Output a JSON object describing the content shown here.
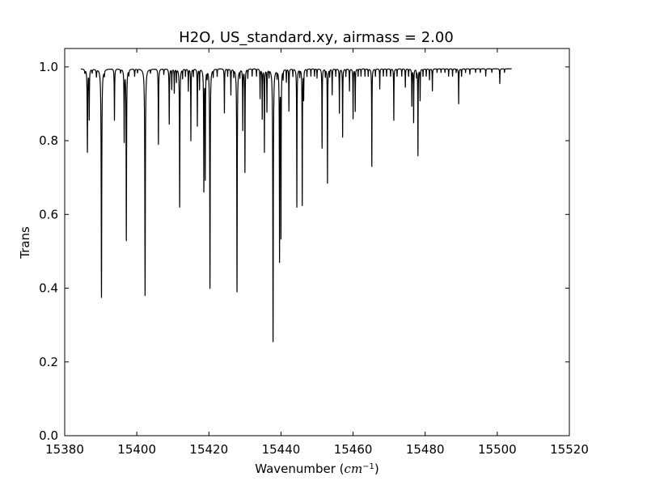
{
  "chart_data": {
    "type": "line",
    "title": "H2O, US_standard.xy, airmass = 2.00",
    "xlabel_prefix": "Wavenumber (",
    "xlabel_math": "cm",
    "xlabel_exp": "−1",
    "xlabel_suffix": ")",
    "ylabel": "Trans",
    "xlim": [
      15380,
      15520
    ],
    "ylim": [
      0.0,
      1.05
    ],
    "xticks": [
      15380,
      15400,
      15420,
      15440,
      15460,
      15480,
      15500,
      15520
    ],
    "yticks": [
      0.0,
      0.2,
      0.4,
      0.6,
      0.8,
      1.0
    ],
    "xtick_labels": [
      "15380",
      "15400",
      "15420",
      "15440",
      "15460",
      "15480",
      "15500",
      "15520"
    ],
    "ytick_labels": [
      "0.0",
      "0.2",
      "0.4",
      "0.6",
      "0.8",
      "1.0"
    ],
    "grid": false,
    "line_color": "#000000",
    "series": [
      {
        "x_range": [
          15384.5,
          15504.0
        ],
        "baseline": 0.995,
        "lines": [
          [
            15385.6,
            0.985,
            0.1
          ],
          [
            15386.3,
            0.77,
            0.07
          ],
          [
            15386.8,
            0.86,
            0.06
          ],
          [
            15387.6,
            0.985,
            0.08
          ],
          [
            15388.8,
            0.975,
            0.08
          ],
          [
            15390.2,
            0.375,
            0.07
          ],
          [
            15391.0,
            0.98,
            0.08
          ],
          [
            15393.8,
            0.855,
            0.06
          ],
          [
            15395.5,
            0.985,
            0.07
          ],
          [
            15396.5,
            0.8,
            0.06
          ],
          [
            15397.1,
            0.53,
            0.06
          ],
          [
            15397.8,
            0.98,
            0.07
          ],
          [
            15399.4,
            0.975,
            0.07
          ],
          [
            15400.2,
            0.985,
            0.06
          ],
          [
            15402.3,
            0.38,
            0.07
          ],
          [
            15403.8,
            0.985,
            0.06
          ],
          [
            15406.0,
            0.79,
            0.06
          ],
          [
            15407.5,
            0.98,
            0.06
          ],
          [
            15409.0,
            0.845,
            0.06
          ],
          [
            15409.7,
            0.94,
            0.05
          ],
          [
            15410.4,
            0.93,
            0.05
          ],
          [
            15411.0,
            0.96,
            0.05
          ],
          [
            15411.9,
            0.62,
            0.06
          ],
          [
            15412.7,
            0.97,
            0.05
          ],
          [
            15413.5,
            0.975,
            0.05
          ],
          [
            15414.3,
            0.935,
            0.05
          ],
          [
            15415.0,
            0.8,
            0.05
          ],
          [
            15415.7,
            0.975,
            0.05
          ],
          [
            15416.8,
            0.84,
            0.05
          ],
          [
            15417.4,
            0.94,
            0.05
          ],
          [
            15418.6,
            0.665,
            0.06
          ],
          [
            15419.0,
            0.7,
            0.05
          ],
          [
            15419.5,
            0.975,
            0.05
          ],
          [
            15420.3,
            0.4,
            0.06
          ],
          [
            15421.2,
            0.975,
            0.05
          ],
          [
            15422.3,
            0.975,
            0.05
          ],
          [
            15424.3,
            0.875,
            0.05
          ],
          [
            15425.2,
            0.975,
            0.05
          ],
          [
            15426.1,
            0.925,
            0.05
          ],
          [
            15426.9,
            0.975,
            0.05
          ],
          [
            15427.8,
            0.39,
            0.06
          ],
          [
            15428.6,
            0.975,
            0.05
          ],
          [
            15429.4,
            0.83,
            0.05
          ],
          [
            15430.0,
            0.715,
            0.05
          ],
          [
            15430.8,
            0.97,
            0.05
          ],
          [
            15432.0,
            0.975,
            0.05
          ],
          [
            15433.2,
            0.975,
            0.05
          ],
          [
            15434.2,
            0.915,
            0.05
          ],
          [
            15434.8,
            0.86,
            0.05
          ],
          [
            15435.4,
            0.77,
            0.05
          ],
          [
            15436.1,
            0.88,
            0.05
          ],
          [
            15436.7,
            0.975,
            0.05
          ],
          [
            15437.8,
            0.255,
            0.06
          ],
          [
            15438.9,
            0.975,
            0.05
          ],
          [
            15439.6,
            0.475,
            0.05
          ],
          [
            15440.0,
            0.54,
            0.05
          ],
          [
            15440.6,
            0.97,
            0.05
          ],
          [
            15441.5,
            0.96,
            0.05
          ],
          [
            15442.2,
            0.88,
            0.05
          ],
          [
            15443.3,
            0.975,
            0.05
          ],
          [
            15444.4,
            0.62,
            0.05
          ],
          [
            15445.2,
            0.975,
            0.05
          ],
          [
            15445.9,
            0.625,
            0.05
          ],
          [
            15446.3,
            0.915,
            0.05
          ],
          [
            15447.2,
            0.975,
            0.05
          ],
          [
            15448.3,
            0.975,
            0.05
          ],
          [
            15449.3,
            0.975,
            0.05
          ],
          [
            15450.0,
            0.97,
            0.05
          ],
          [
            15451.4,
            0.78,
            0.05
          ],
          [
            15452.3,
            0.975,
            0.05
          ],
          [
            15452.9,
            0.685,
            0.05
          ],
          [
            15453.5,
            0.975,
            0.05
          ],
          [
            15454.2,
            0.925,
            0.05
          ],
          [
            15455.2,
            0.975,
            0.05
          ],
          [
            15456.2,
            0.875,
            0.05
          ],
          [
            15457.1,
            0.81,
            0.05
          ],
          [
            15458.0,
            0.975,
            0.05
          ],
          [
            15459.0,
            0.935,
            0.05
          ],
          [
            15460.0,
            0.86,
            0.05
          ],
          [
            15460.6,
            0.88,
            0.05
          ],
          [
            15461.4,
            0.975,
            0.05
          ],
          [
            15462.2,
            0.975,
            0.05
          ],
          [
            15463.3,
            0.975,
            0.05
          ],
          [
            15464.2,
            0.975,
            0.05
          ],
          [
            15465.2,
            0.73,
            0.05
          ],
          [
            15466.2,
            0.975,
            0.05
          ],
          [
            15467.4,
            0.94,
            0.05
          ],
          [
            15468.4,
            0.975,
            0.05
          ],
          [
            15469.3,
            0.975,
            0.05
          ],
          [
            15470.4,
            0.975,
            0.05
          ],
          [
            15471.3,
            0.855,
            0.05
          ],
          [
            15472.2,
            0.975,
            0.05
          ],
          [
            15473.5,
            0.975,
            0.05
          ],
          [
            15474.5,
            0.945,
            0.05
          ],
          [
            15475.4,
            0.975,
            0.05
          ],
          [
            15476.3,
            0.895,
            0.05
          ],
          [
            15476.8,
            0.85,
            0.05
          ],
          [
            15477.6,
            0.975,
            0.05
          ],
          [
            15478.0,
            0.76,
            0.05
          ],
          [
            15478.6,
            0.91,
            0.05
          ],
          [
            15479.4,
            0.975,
            0.05
          ],
          [
            15480.3,
            0.975,
            0.05
          ],
          [
            15481.2,
            0.965,
            0.05
          ],
          [
            15482.0,
            0.935,
            0.05
          ],
          [
            15483.3,
            0.985,
            0.05
          ],
          [
            15484.4,
            0.985,
            0.05
          ],
          [
            15485.5,
            0.985,
            0.05
          ],
          [
            15486.5,
            0.975,
            0.05
          ],
          [
            15487.6,
            0.975,
            0.05
          ],
          [
            15488.6,
            0.985,
            0.05
          ],
          [
            15489.3,
            0.9,
            0.05
          ],
          [
            15490.1,
            0.975,
            0.05
          ],
          [
            15491.2,
            0.985,
            0.05
          ],
          [
            15492.4,
            0.98,
            0.05
          ],
          [
            15494.0,
            0.985,
            0.05
          ],
          [
            15495.3,
            0.985,
            0.05
          ],
          [
            15496.8,
            0.975,
            0.05
          ],
          [
            15498.5,
            0.985,
            0.05
          ],
          [
            15500.7,
            0.955,
            0.05
          ],
          [
            15502.0,
            0.985,
            0.05
          ]
        ]
      }
    ]
  }
}
